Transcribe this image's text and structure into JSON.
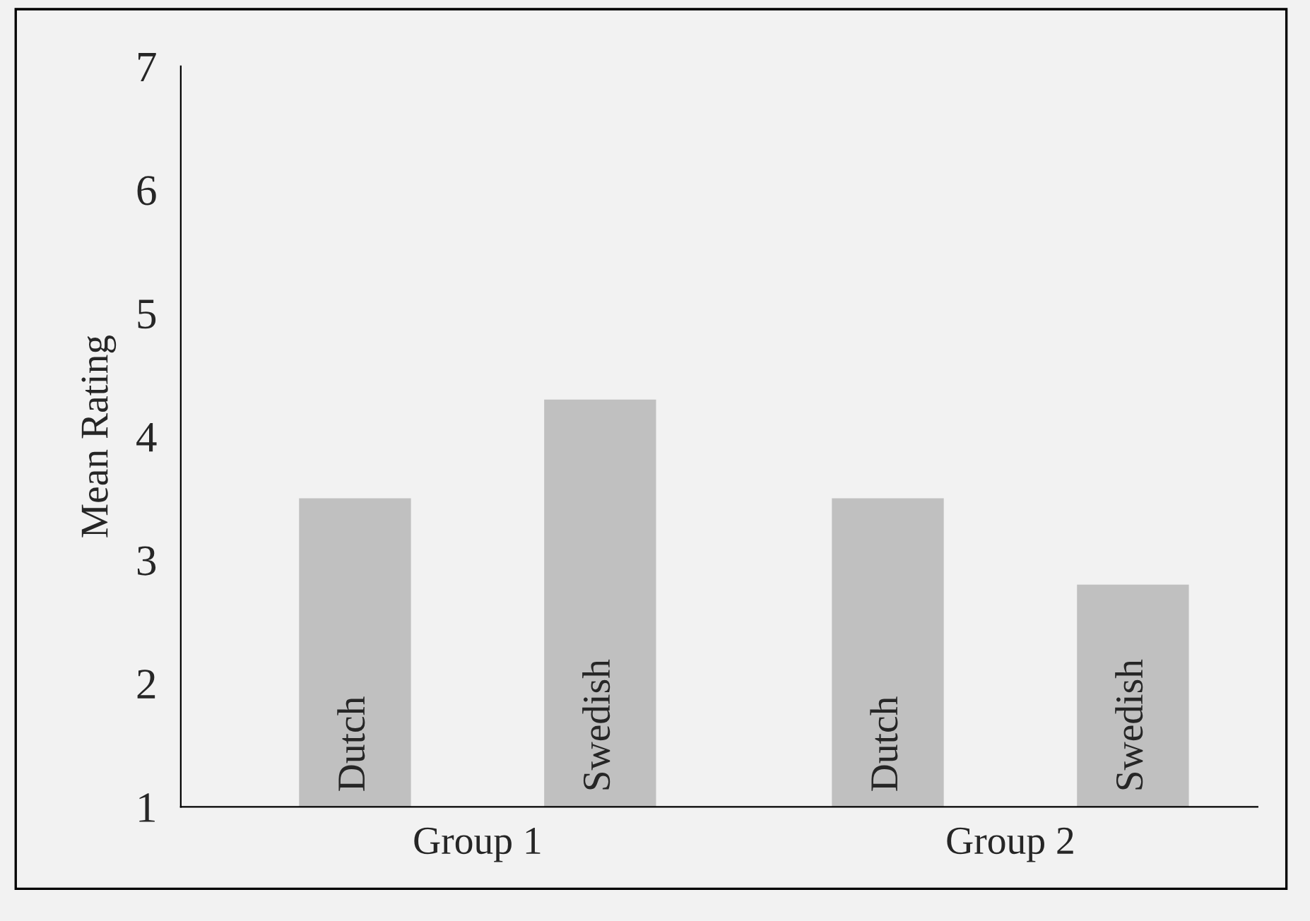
{
  "chart_data": {
    "type": "bar",
    "ylabel": "Mean Rating",
    "categories": [
      "Group 1",
      "Group 2"
    ],
    "series": [
      {
        "name": "Dutch",
        "color": "#c0c0c0",
        "values": [
          3.5,
          3.5
        ]
      },
      {
        "name": "Swedish",
        "color": "#c0c0c0",
        "values": [
          4.3,
          2.8
        ]
      }
    ],
    "ylim": [
      1,
      7
    ],
    "yticks": [
      1,
      2,
      3,
      4,
      5,
      6,
      7
    ],
    "grid": false,
    "legend": false
  }
}
